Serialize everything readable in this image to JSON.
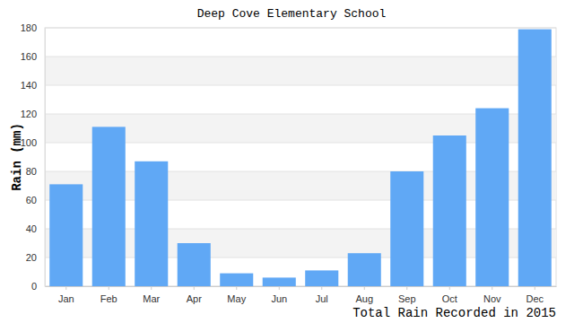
{
  "chart_data": {
    "type": "bar",
    "title": "Deep Cove Elementary School",
    "ylabel": "Rain (mm)",
    "xlabel": "Total Rain Recorded in 2015",
    "categories": [
      "Jan",
      "Feb",
      "Mar",
      "Apr",
      "May",
      "Jun",
      "Jul",
      "Aug",
      "Sep",
      "Oct",
      "Nov",
      "Dec"
    ],
    "values": [
      71,
      111,
      87,
      30,
      9,
      6,
      11,
      23,
      80,
      105,
      124,
      179
    ],
    "color": "#60a8f5",
    "ylim": [
      0,
      180
    ],
    "yticks": [
      0,
      20,
      40,
      60,
      80,
      100,
      120,
      140,
      160,
      180
    ],
    "grid": true
  }
}
